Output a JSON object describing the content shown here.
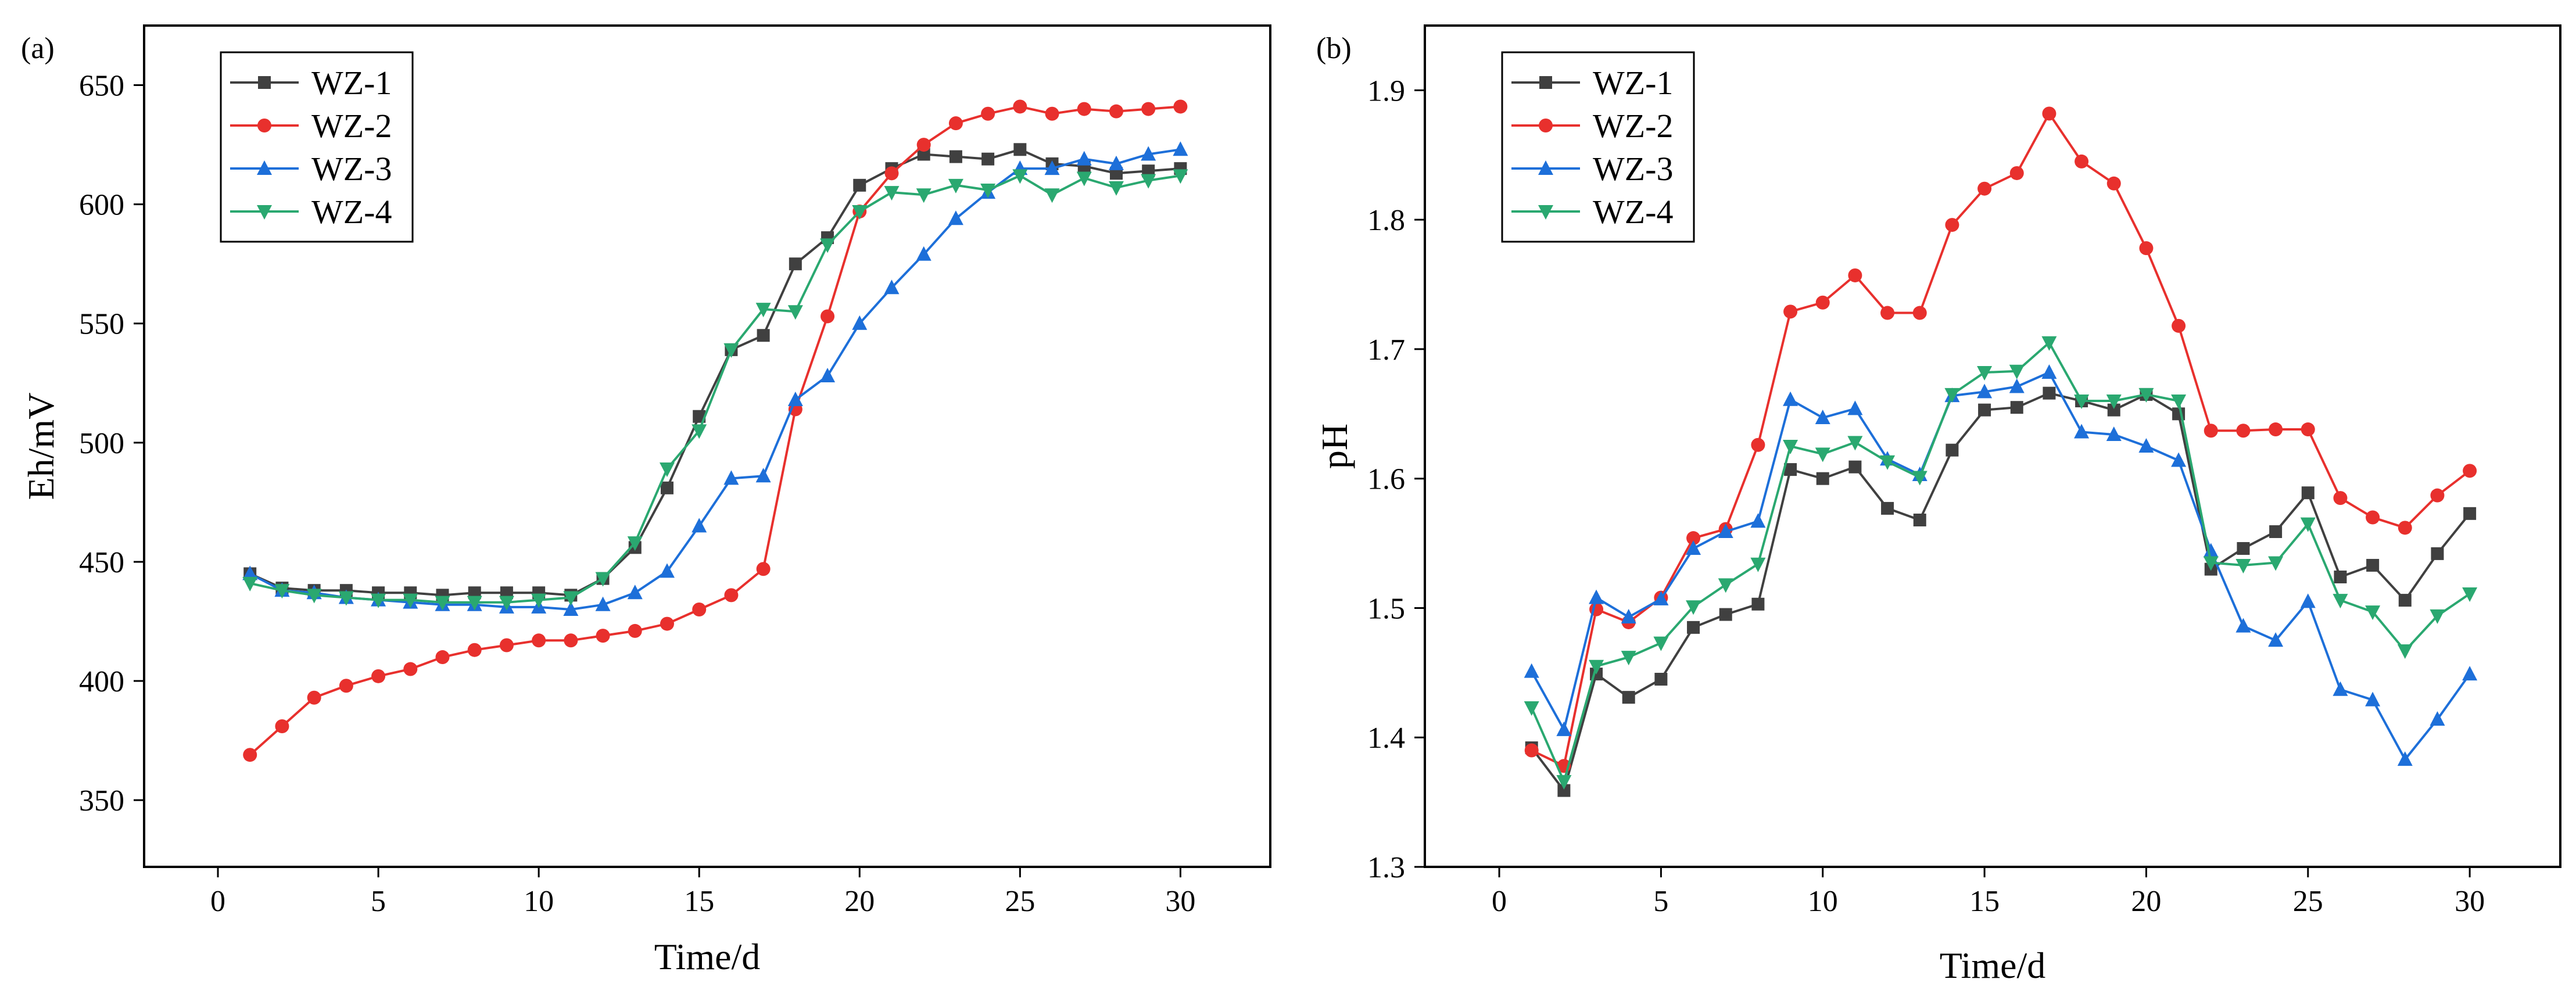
{
  "chart_data": [
    {
      "panel_label": "(a)",
      "type": "line",
      "xlabel": "Time/d",
      "ylabel": "Eh/mV",
      "xlim": [
        -2.3,
        32.8
      ],
      "ylim": [
        322,
        675
      ],
      "xticks": [
        0,
        5,
        10,
        15,
        20,
        25,
        30
      ],
      "yticks": [
        350,
        400,
        450,
        500,
        550,
        600,
        650
      ],
      "legend_position": "top-left",
      "x": [
        1,
        2,
        3,
        4,
        5,
        6,
        7,
        8,
        9,
        10,
        11,
        12,
        13,
        14,
        15,
        16,
        17,
        18,
        19,
        20,
        21,
        22,
        23,
        24,
        25,
        26,
        27,
        28,
        29,
        30
      ],
      "series": [
        {
          "name": "WZ-1",
          "color": "#404040",
          "marker": "square",
          "values": [
            445,
            439,
            438,
            438,
            437,
            437,
            436,
            437,
            437,
            437,
            436,
            443,
            456,
            481,
            511,
            539,
            545,
            575,
            586,
            608,
            615,
            621,
            620,
            619,
            623,
            617,
            616,
            613,
            614,
            615
          ]
        },
        {
          "name": "WZ-2",
          "color": "#e8302d",
          "marker": "circle",
          "values": [
            369,
            381,
            393,
            398,
            402,
            405,
            410,
            413,
            415,
            417,
            417,
            419,
            421,
            424,
            430,
            436,
            447,
            514,
            553,
            597,
            613,
            625,
            634,
            638,
            641,
            638,
            640,
            639,
            640,
            641
          ]
        },
        {
          "name": "WZ-3",
          "color": "#1d6fd9",
          "marker": "triangle-up",
          "values": [
            445,
            438,
            437,
            435,
            434,
            433,
            432,
            432,
            431,
            431,
            430,
            432,
            437,
            446,
            465,
            485,
            486,
            518,
            528,
            550,
            565,
            579,
            594,
            605,
            615,
            615,
            619,
            617,
            621,
            623
          ]
        },
        {
          "name": "WZ-4",
          "color": "#2aa870",
          "marker": "triangle-down",
          "values": [
            441,
            438,
            436,
            435,
            434,
            434,
            433,
            433,
            433,
            434,
            435,
            443,
            458,
            489,
            505,
            539,
            556,
            555,
            583,
            597,
            605,
            604,
            608,
            606,
            612,
            604,
            611,
            607,
            610,
            612
          ]
        }
      ]
    },
    {
      "panel_label": "(b)",
      "type": "line",
      "xlabel": "Time/d",
      "ylabel": "pH",
      "xlim": [
        -2.3,
        32.8
      ],
      "ylim": [
        1.3,
        1.95
      ],
      "xticks": [
        0,
        5,
        10,
        15,
        20,
        25,
        30
      ],
      "yticks": [
        "1.3",
        "1.4",
        "1.5",
        "1.6",
        "1.7",
        "1.8",
        "1.9"
      ],
      "legend_position": "top-left",
      "x": [
        1,
        2,
        3,
        4,
        5,
        6,
        7,
        8,
        9,
        10,
        11,
        12,
        13,
        14,
        15,
        16,
        17,
        18,
        19,
        20,
        21,
        22,
        23,
        24,
        25,
        26,
        27,
        28,
        29,
        30
      ],
      "series": [
        {
          "name": "WZ-1",
          "color": "#404040",
          "marker": "square",
          "values": [
            1.392,
            1.359,
            1.449,
            1.431,
            1.445,
            1.485,
            1.495,
            1.503,
            1.607,
            1.6,
            1.609,
            1.577,
            1.568,
            1.622,
            1.653,
            1.655,
            1.666,
            1.66,
            1.653,
            1.665,
            1.65,
            1.53,
            1.546,
            1.559,
            1.589,
            1.524,
            1.533,
            1.506,
            1.542,
            1.573
          ]
        },
        {
          "name": "WZ-2",
          "color": "#e8302d",
          "marker": "circle",
          "values": [
            1.39,
            1.378,
            1.499,
            1.489,
            1.508,
            1.554,
            1.561,
            1.626,
            1.729,
            1.736,
            1.757,
            1.728,
            1.728,
            1.796,
            1.824,
            1.836,
            1.882,
            1.845,
            1.828,
            1.778,
            1.718,
            1.637,
            1.637,
            1.638,
            1.638,
            1.585,
            1.57,
            1.562,
            1.587,
            1.606
          ]
        },
        {
          "name": "WZ-3",
          "color": "#1d6fd9",
          "marker": "triangle-up",
          "values": [
            1.451,
            1.406,
            1.508,
            1.493,
            1.507,
            1.546,
            1.559,
            1.567,
            1.661,
            1.647,
            1.654,
            1.615,
            1.603,
            1.664,
            1.667,
            1.671,
            1.682,
            1.636,
            1.634,
            1.625,
            1.614,
            1.544,
            1.486,
            1.475,
            1.505,
            1.437,
            1.429,
            1.383,
            1.414,
            1.449
          ]
        },
        {
          "name": "WZ-4",
          "color": "#2aa870",
          "marker": "triangle-down",
          "values": [
            1.423,
            1.366,
            1.455,
            1.462,
            1.473,
            1.501,
            1.518,
            1.534,
            1.625,
            1.619,
            1.628,
            1.613,
            1.601,
            1.665,
            1.682,
            1.683,
            1.705,
            1.66,
            1.66,
            1.665,
            1.66,
            1.535,
            1.533,
            1.535,
            1.565,
            1.506,
            1.497,
            1.467,
            1.494,
            1.511
          ]
        }
      ]
    }
  ]
}
